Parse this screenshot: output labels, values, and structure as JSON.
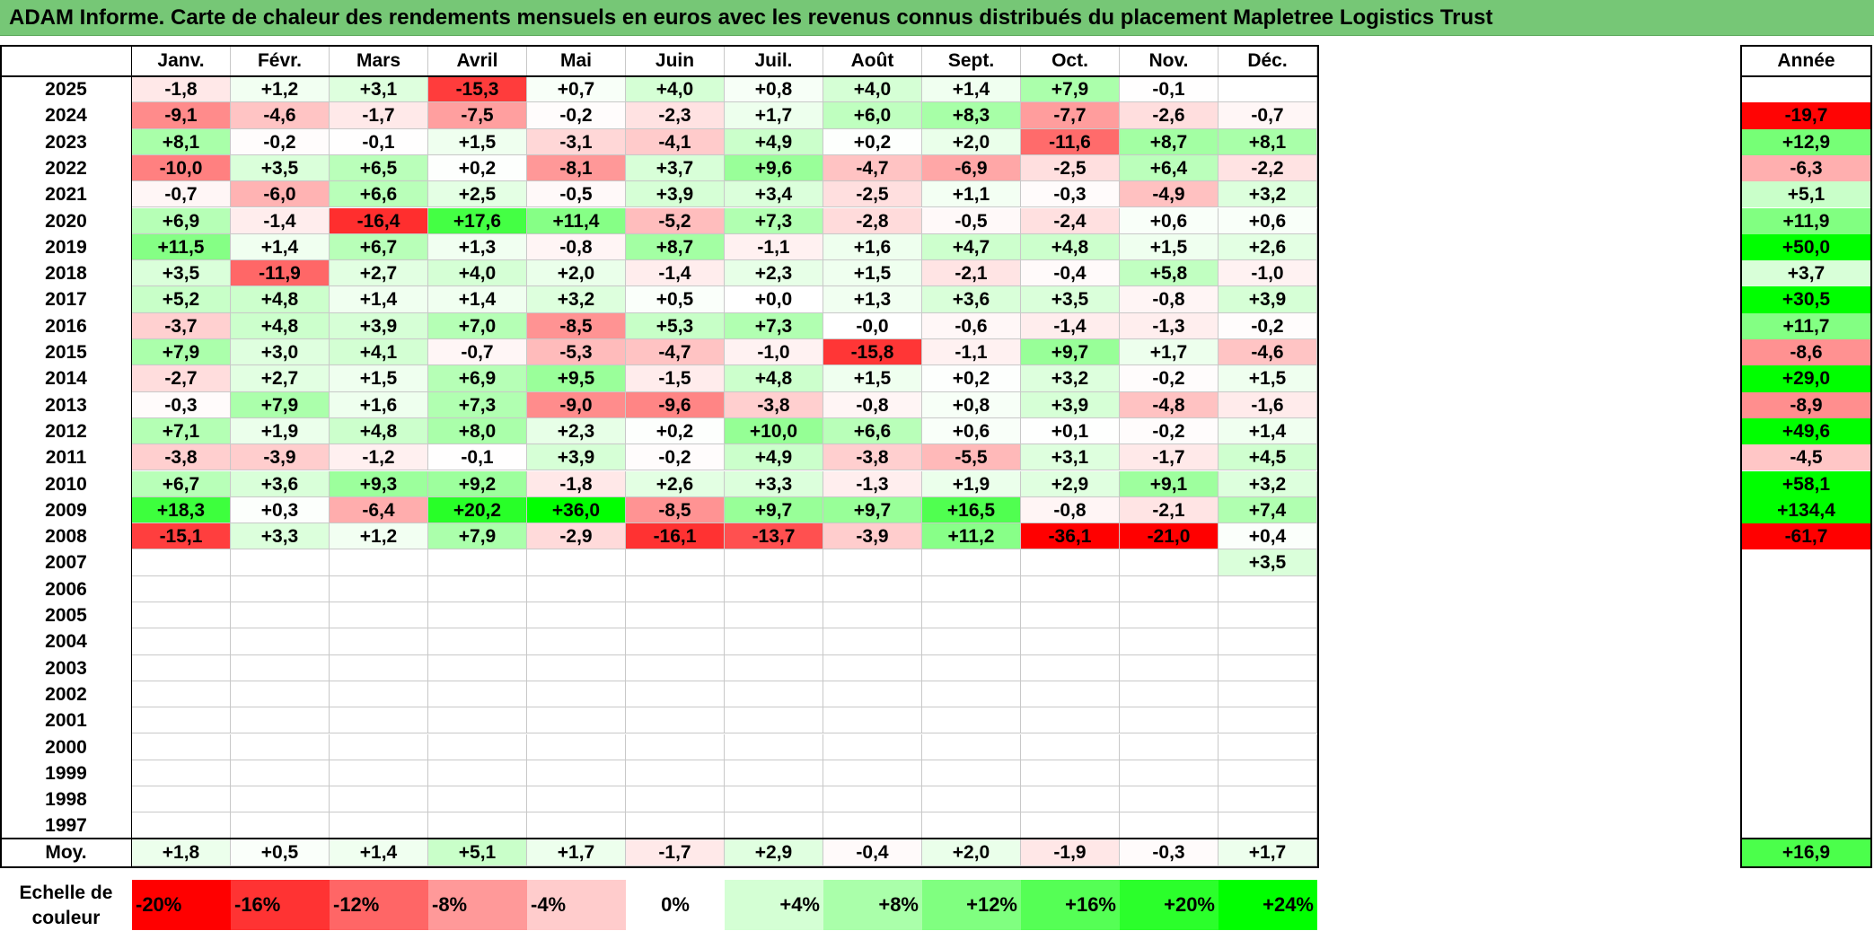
{
  "title": "ADAM Informe. Carte de chaleur des rendements mensuels en euros avec les revenus connus distribués du placement Mapletree Logistics Trust",
  "chart_data": {
    "type": "heatmap",
    "months": [
      "Janv.",
      "Févr.",
      "Mars",
      "Avril",
      "Mai",
      "Juin",
      "Juil.",
      "Août",
      "Sept.",
      "Oct.",
      "Nov.",
      "Déc."
    ],
    "year_header": "Année",
    "rows": [
      {
        "year": "2025",
        "values": [
          "-1,8",
          "+1,2",
          "+3,1",
          "-15,3",
          "+0,7",
          "+4,0",
          "+0,8",
          "+4,0",
          "+1,4",
          "+7,9",
          "-0,1",
          ""
        ],
        "annual": ""
      },
      {
        "year": "2024",
        "values": [
          "-9,1",
          "-4,6",
          "-1,7",
          "-7,5",
          "-0,2",
          "-2,3",
          "+1,7",
          "+6,0",
          "+8,3",
          "-7,7",
          "-2,6",
          "-0,7"
        ],
        "annual": "-19,7"
      },
      {
        "year": "2023",
        "values": [
          "+8,1",
          "-0,2",
          "-0,1",
          "+1,5",
          "-3,1",
          "-4,1",
          "+4,9",
          "+0,2",
          "+2,0",
          "-11,6",
          "+8,7",
          "+8,1"
        ],
        "annual": "+12,9"
      },
      {
        "year": "2022",
        "values": [
          "-10,0",
          "+3,5",
          "+6,5",
          "+0,2",
          "-8,1",
          "+3,7",
          "+9,6",
          "-4,7",
          "-6,9",
          "-2,5",
          "+6,4",
          "-2,2"
        ],
        "annual": "-6,3"
      },
      {
        "year": "2021",
        "values": [
          "-0,7",
          "-6,0",
          "+6,6",
          "+2,5",
          "-0,5",
          "+3,9",
          "+3,4",
          "-2,5",
          "+1,1",
          "-0,3",
          "-4,9",
          "+3,2"
        ],
        "annual": "+5,1"
      },
      {
        "year": "2020",
        "values": [
          "+6,9",
          "-1,4",
          "-16,4",
          "+17,6",
          "+11,4",
          "-5,2",
          "+7,3",
          "-2,8",
          "-0,5",
          "-2,4",
          "+0,6",
          "+0,6"
        ],
        "annual": "+11,9"
      },
      {
        "year": "2019",
        "values": [
          "+11,5",
          "+1,4",
          "+6,7",
          "+1,3",
          "-0,8",
          "+8,7",
          "-1,1",
          "+1,6",
          "+4,7",
          "+4,8",
          "+1,5",
          "+2,6"
        ],
        "annual": "+50,0"
      },
      {
        "year": "2018",
        "values": [
          "+3,5",
          "-11,9",
          "+2,7",
          "+4,0",
          "+2,0",
          "-1,4",
          "+2,3",
          "+1,5",
          "-2,1",
          "-0,4",
          "+5,8",
          "-1,0"
        ],
        "annual": "+3,7"
      },
      {
        "year": "2017",
        "values": [
          "+5,2",
          "+4,8",
          "+1,4",
          "+1,4",
          "+3,2",
          "+0,5",
          "+0,0",
          "+1,3",
          "+3,6",
          "+3,5",
          "-0,8",
          "+3,9"
        ],
        "annual": "+30,5"
      },
      {
        "year": "2016",
        "values": [
          "-3,7",
          "+4,8",
          "+3,9",
          "+7,0",
          "-8,5",
          "+5,3",
          "+7,3",
          "-0,0",
          "-0,6",
          "-1,4",
          "-1,3",
          "-0,2"
        ],
        "annual": "+11,7"
      },
      {
        "year": "2015",
        "values": [
          "+7,9",
          "+3,0",
          "+4,1",
          "-0,7",
          "-5,3",
          "-4,7",
          "-1,0",
          "-15,8",
          "-1,1",
          "+9,7",
          "+1,7",
          "-4,6"
        ],
        "annual": "-8,6"
      },
      {
        "year": "2014",
        "values": [
          "-2,7",
          "+2,7",
          "+1,5",
          "+6,9",
          "+9,5",
          "-1,5",
          "+4,8",
          "+1,5",
          "+0,2",
          "+3,2",
          "-0,2",
          "+1,5"
        ],
        "annual": "+29,0"
      },
      {
        "year": "2013",
        "values": [
          "-0,3",
          "+7,9",
          "+1,6",
          "+7,3",
          "-9,0",
          "-9,6",
          "-3,8",
          "-0,8",
          "+0,8",
          "+3,9",
          "-4,8",
          "-1,6"
        ],
        "annual": "-8,9"
      },
      {
        "year": "2012",
        "values": [
          "+7,1",
          "+1,9",
          "+4,8",
          "+8,0",
          "+2,3",
          "+0,2",
          "+10,0",
          "+6,6",
          "+0,6",
          "+0,1",
          "-0,2",
          "+1,4"
        ],
        "annual": "+49,6"
      },
      {
        "year": "2011",
        "values": [
          "-3,8",
          "-3,9",
          "-1,2",
          "-0,1",
          "+3,9",
          "-0,2",
          "+4,9",
          "-3,8",
          "-5,5",
          "+3,1",
          "-1,7",
          "+4,5"
        ],
        "annual": "-4,5"
      },
      {
        "year": "2010",
        "values": [
          "+6,7",
          "+3,6",
          "+9,3",
          "+9,2",
          "-1,8",
          "+2,6",
          "+3,3",
          "-1,3",
          "+1,9",
          "+2,9",
          "+9,1",
          "+3,2"
        ],
        "annual": "+58,1"
      },
      {
        "year": "2009",
        "values": [
          "+18,3",
          "+0,3",
          "-6,4",
          "+20,2",
          "+36,0",
          "-8,5",
          "+9,7",
          "+9,7",
          "+16,5",
          "-0,8",
          "-2,1",
          "+7,4"
        ],
        "annual": "+134,4"
      },
      {
        "year": "2008",
        "values": [
          "-15,1",
          "+3,3",
          "+1,2",
          "+7,9",
          "-2,9",
          "-16,1",
          "-13,7",
          "-3,9",
          "+11,2",
          "-36,1",
          "-21,0",
          "+0,4"
        ],
        "annual": "-61,7"
      },
      {
        "year": "2007",
        "values": [
          "",
          "",
          "",
          "",
          "",
          "",
          "",
          "",
          "",
          "",
          "",
          "+3,5"
        ],
        "annual": ""
      },
      {
        "year": "2006",
        "values": [
          "",
          "",
          "",
          "",
          "",
          "",
          "",
          "",
          "",
          "",
          "",
          ""
        ],
        "annual": ""
      },
      {
        "year": "2005",
        "values": [
          "",
          "",
          "",
          "",
          "",
          "",
          "",
          "",
          "",
          "",
          "",
          ""
        ],
        "annual": ""
      },
      {
        "year": "2004",
        "values": [
          "",
          "",
          "",
          "",
          "",
          "",
          "",
          "",
          "",
          "",
          "",
          ""
        ],
        "annual": ""
      },
      {
        "year": "2003",
        "values": [
          "",
          "",
          "",
          "",
          "",
          "",
          "",
          "",
          "",
          "",
          "",
          ""
        ],
        "annual": ""
      },
      {
        "year": "2002",
        "values": [
          "",
          "",
          "",
          "",
          "",
          "",
          "",
          "",
          "",
          "",
          "",
          ""
        ],
        "annual": ""
      },
      {
        "year": "2001",
        "values": [
          "",
          "",
          "",
          "",
          "",
          "",
          "",
          "",
          "",
          "",
          "",
          ""
        ],
        "annual": ""
      },
      {
        "year": "2000",
        "values": [
          "",
          "",
          "",
          "",
          "",
          "",
          "",
          "",
          "",
          "",
          "",
          ""
        ],
        "annual": ""
      },
      {
        "year": "1999",
        "values": [
          "",
          "",
          "",
          "",
          "",
          "",
          "",
          "",
          "",
          "",
          "",
          ""
        ],
        "annual": ""
      },
      {
        "year": "1998",
        "values": [
          "",
          "",
          "",
          "",
          "",
          "",
          "",
          "",
          "",
          "",
          "",
          ""
        ],
        "annual": ""
      },
      {
        "year": "1997",
        "values": [
          "",
          "",
          "",
          "",
          "",
          "",
          "",
          "",
          "",
          "",
          "",
          ""
        ],
        "annual": ""
      }
    ],
    "average": {
      "label": "Moy.",
      "values": [
        "+1,8",
        "+0,5",
        "+1,4",
        "+5,1",
        "+1,7",
        "-1,7",
        "+2,9",
        "-0,4",
        "+2,0",
        "-1,9",
        "-0,3",
        "+1,7"
      ],
      "annual": "+16,9"
    },
    "color_scale": {
      "label_line1": "Echelle de",
      "label_line2": "couleur",
      "steps": [
        {
          "label": "-20%",
          "color": "#ff0000"
        },
        {
          "label": "-16%",
          "color": "#ff3333"
        },
        {
          "label": "-12%",
          "color": "#ff6666"
        },
        {
          "label": "-8%",
          "color": "#ff9999"
        },
        {
          "label": "-4%",
          "color": "#ffcccc"
        },
        {
          "label": "0%",
          "color": "#ffffff"
        },
        {
          "label": "+4%",
          "color": "#d4ffd4"
        },
        {
          "label": "+8%",
          "color": "#aaffaa"
        },
        {
          "label": "+12%",
          "color": "#80ff80"
        },
        {
          "label": "+16%",
          "color": "#55ff55"
        },
        {
          "label": "+20%",
          "color": "#2bff2b"
        },
        {
          "label": "+24%",
          "color": "#00ff00"
        }
      ]
    }
  }
}
